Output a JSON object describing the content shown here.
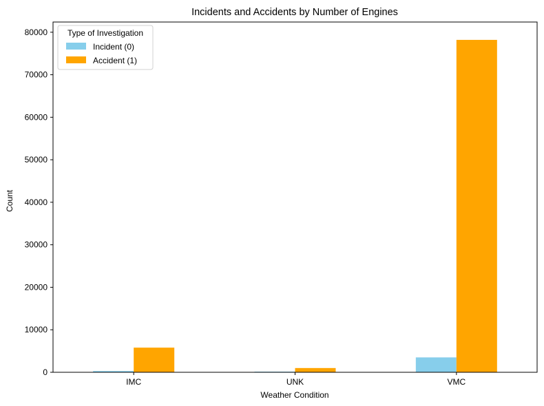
{
  "chart_data": {
    "type": "bar",
    "title": "Incidents and Accidents by Number of Engines",
    "xlabel": "Weather Condition",
    "ylabel": "Count",
    "categories": [
      "IMC",
      "UNK",
      "VMC"
    ],
    "series": [
      {
        "name": "Incident (0)",
        "values": [
          300,
          150,
          3500
        ]
      },
      {
        "name": "Accident (1)",
        "values": [
          5800,
          1000,
          78200
        ]
      }
    ],
    "ylim": [
      0,
      82400
    ],
    "yticks": [
      0,
      10000,
      20000,
      30000,
      40000,
      50000,
      60000,
      70000,
      80000
    ],
    "grid": false,
    "legend": {
      "title": "Type of Investigation",
      "placement": "top-left"
    },
    "colors": [
      "#87ceeb",
      "#ffa500"
    ]
  }
}
